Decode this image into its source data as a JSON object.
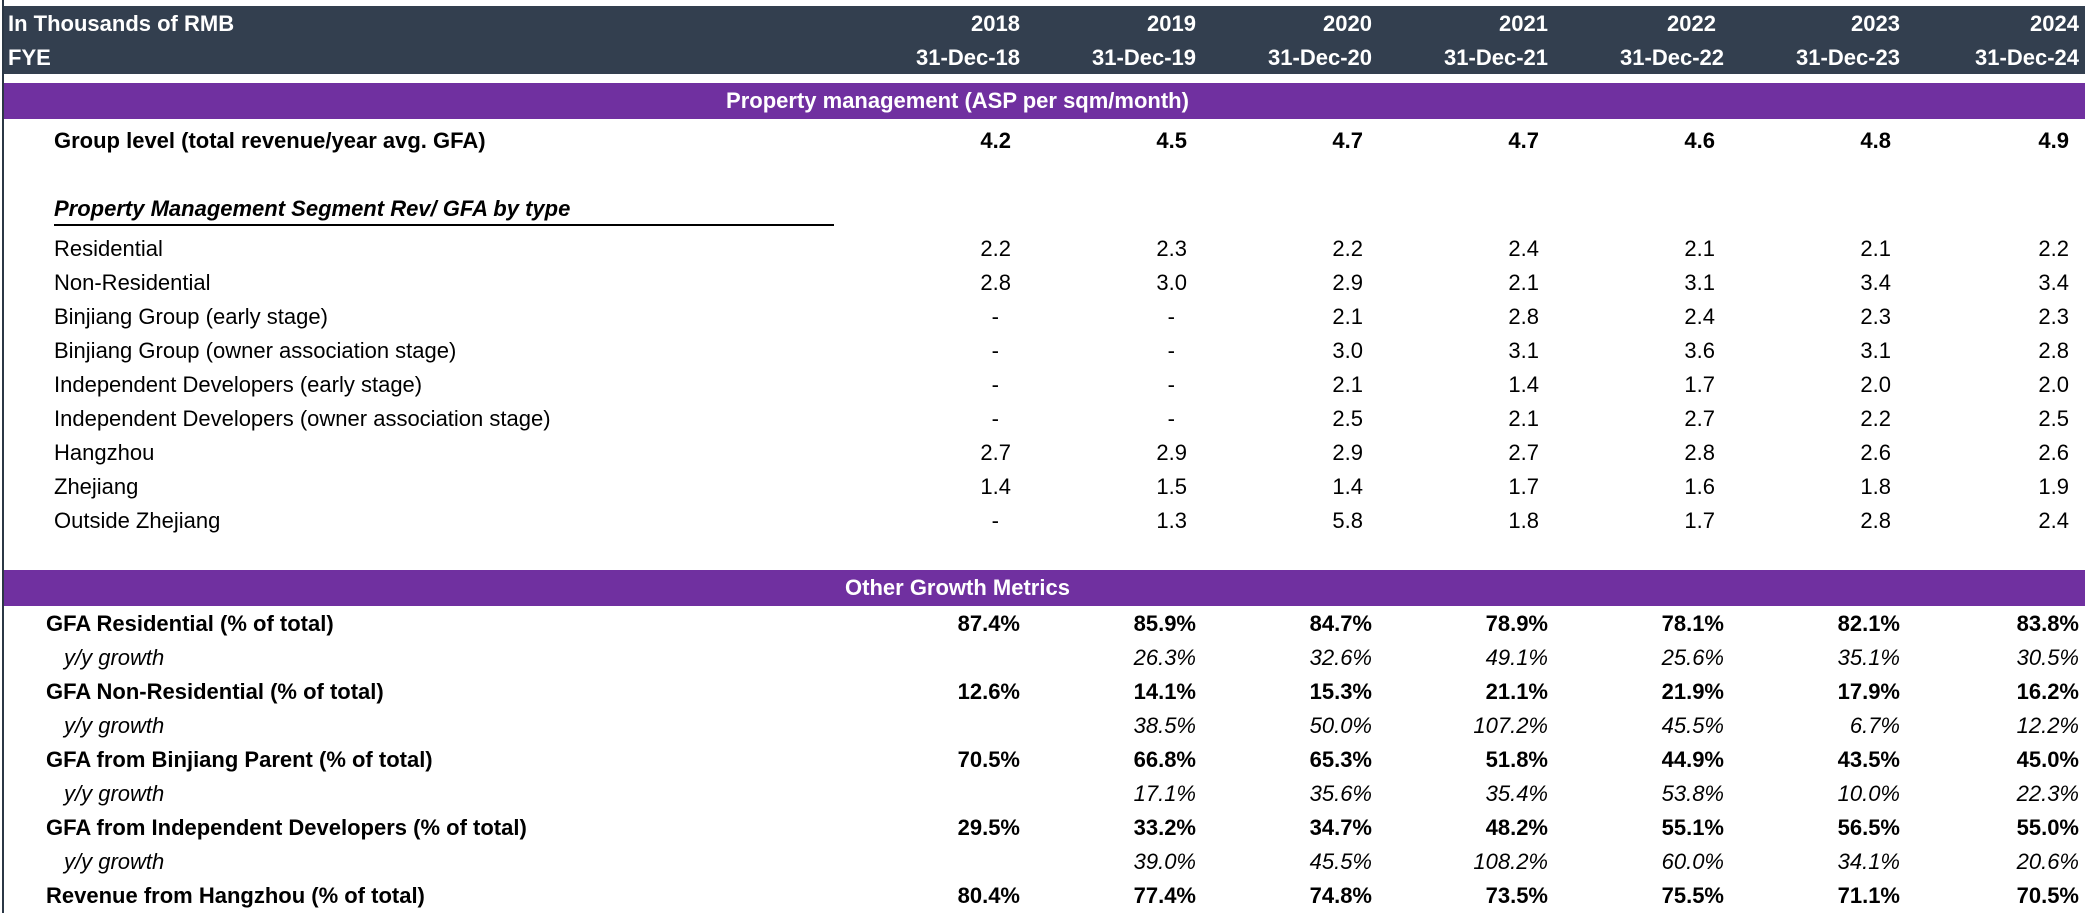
{
  "header": {
    "row1_label": "In Thousands of RMB",
    "row2_label": "FYE",
    "years": [
      "2018",
      "2019",
      "2020",
      "2021",
      "2022",
      "2023",
      "2024"
    ],
    "dates": [
      "31-Dec-18",
      "31-Dec-19",
      "31-Dec-20",
      "31-Dec-21",
      "31-Dec-22",
      "31-Dec-23",
      "31-Dec-24"
    ]
  },
  "section1": {
    "title": "Property management (ASP per sqm/month)",
    "group_row": {
      "label": "Group level (total revenue/year avg. GFA)",
      "values": [
        "4.2",
        "4.5",
        "4.7",
        "4.7",
        "4.6",
        "4.8",
        "4.9"
      ]
    },
    "subsection_title": "Property Management Segment Rev/ GFA by type",
    "rows": [
      {
        "label": "Residential",
        "values": [
          "2.2",
          "2.3",
          "2.2",
          "2.4",
          "2.1",
          "2.1",
          "2.2"
        ]
      },
      {
        "label": "Non-Residential",
        "values": [
          "2.8",
          "3.0",
          "2.9",
          "2.1",
          "3.1",
          "3.4",
          "3.4"
        ]
      },
      {
        "label": "Binjiang Group (early stage)",
        "values": [
          "-",
          "-",
          "2.1",
          "2.8",
          "2.4",
          "2.3",
          "2.3"
        ]
      },
      {
        "label": "Binjiang Group (owner association stage)",
        "values": [
          "-",
          "-",
          "3.0",
          "3.1",
          "3.6",
          "3.1",
          "2.8"
        ]
      },
      {
        "label": "Independent Developers (early stage)",
        "values": [
          "-",
          "-",
          "2.1",
          "1.4",
          "1.7",
          "2.0",
          "2.0"
        ]
      },
      {
        "label": "Independent Developers (owner association stage)",
        "values": [
          "-",
          "-",
          "2.5",
          "2.1",
          "2.7",
          "2.2",
          "2.5"
        ]
      },
      {
        "label": "Hangzhou",
        "values": [
          "2.7",
          "2.9",
          "2.9",
          "2.7",
          "2.8",
          "2.6",
          "2.6"
        ]
      },
      {
        "label": "Zhejiang",
        "values": [
          "1.4",
          "1.5",
          "1.4",
          "1.7",
          "1.6",
          "1.8",
          "1.9"
        ]
      },
      {
        "label": "Outside Zhejiang",
        "values": [
          "-",
          "1.3",
          "5.8",
          "1.8",
          "1.7",
          "2.8",
          "2.4"
        ]
      }
    ]
  },
  "section2": {
    "title": "Other Growth Metrics",
    "rows": [
      {
        "label": "GFA Residential (% of total)",
        "values": [
          "87.4%",
          "85.9%",
          "84.7%",
          "78.9%",
          "78.1%",
          "82.1%",
          "83.8%"
        ]
      },
      {
        "label": "y/y growth",
        "values": [
          "",
          "26.3%",
          "32.6%",
          "49.1%",
          "25.6%",
          "35.1%",
          "30.5%"
        ]
      },
      {
        "label": "GFA Non-Residential (% of total)",
        "values": [
          "12.6%",
          "14.1%",
          "15.3%",
          "21.1%",
          "21.9%",
          "17.9%",
          "16.2%"
        ]
      },
      {
        "label": "y/y growth",
        "values": [
          "",
          "38.5%",
          "50.0%",
          "107.2%",
          "45.5%",
          "6.7%",
          "12.2%"
        ]
      },
      {
        "label": "GFA from Binjiang Parent (% of total)",
        "values": [
          "70.5%",
          "66.8%",
          "65.3%",
          "51.8%",
          "44.9%",
          "43.5%",
          "45.0%"
        ]
      },
      {
        "label": "y/y growth",
        "values": [
          "",
          "17.1%",
          "35.6%",
          "35.4%",
          "53.8%",
          "10.0%",
          "22.3%"
        ]
      },
      {
        "label": "GFA from Independent Developers (% of total)",
        "values": [
          "29.5%",
          "33.2%",
          "34.7%",
          "48.2%",
          "55.1%",
          "56.5%",
          "55.0%"
        ]
      },
      {
        "label": "y/y growth",
        "values": [
          "",
          "39.0%",
          "45.5%",
          "108.2%",
          "60.0%",
          "34.1%",
          "20.6%"
        ]
      },
      {
        "label": "Revenue from Hangzhou (% of total)",
        "values": [
          "80.4%",
          "77.4%",
          "74.8%",
          "73.5%",
          "75.5%",
          "71.1%",
          "70.5%"
        ]
      }
    ]
  }
}
